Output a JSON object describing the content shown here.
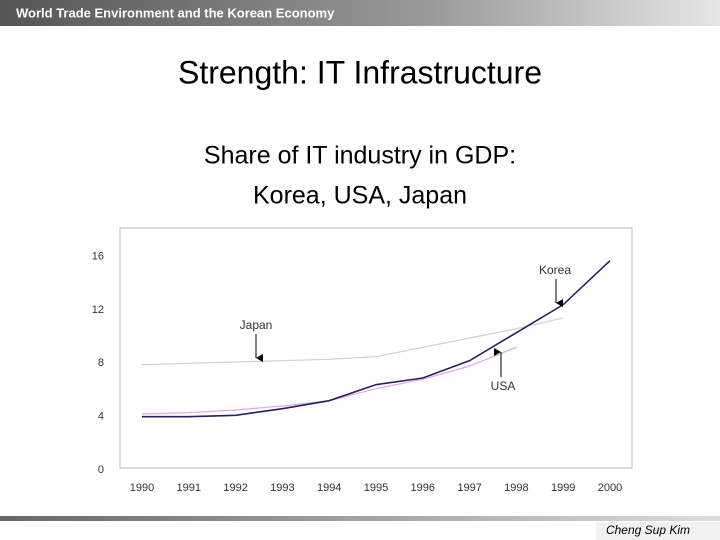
{
  "header": "World Trade Environment and the Korean Economy",
  "slide_title": "Strength: IT Infrastructure",
  "footer": "Cheng Sup Kim",
  "chart_data": {
    "type": "line",
    "title": "Share of IT industry in GDP:",
    "subtitle": "Korea, USA, Japan",
    "categories": [
      "1990",
      "1991",
      "1992",
      "1993",
      "1994",
      "1995",
      "1996",
      "1997",
      "1998",
      "1999",
      "2000"
    ],
    "series": [
      {
        "name": "Korea",
        "color": "#2a1f5e",
        "values": [
          4.0,
          4.0,
          4.1,
          4.6,
          5.2,
          6.4,
          6.9,
          8.2,
          10.3,
          12.4,
          15.7
        ]
      },
      {
        "name": "Japan",
        "color": "#d0d0d0",
        "values": [
          7.9,
          8.0,
          8.1,
          8.2,
          8.3,
          8.5,
          9.2,
          9.9,
          10.6,
          11.4,
          null
        ]
      },
      {
        "name": "USA",
        "color": "#e0a8e0",
        "values": [
          4.2,
          4.3,
          4.5,
          4.8,
          5.2,
          6.1,
          6.8,
          7.8,
          9.2,
          null,
          null
        ]
      }
    ],
    "ylim": [
      0,
      18
    ],
    "yticks": [
      0,
      4,
      8,
      12,
      16
    ],
    "grid": false
  }
}
